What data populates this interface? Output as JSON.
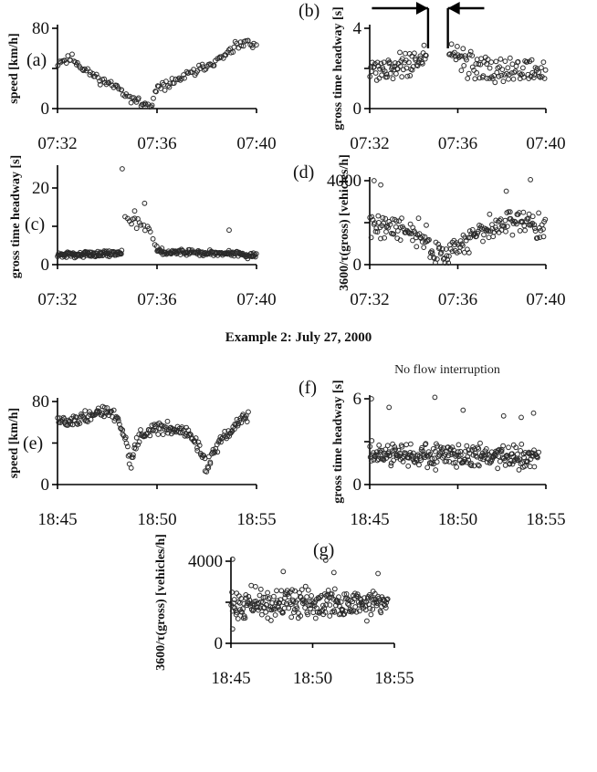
{
  "example2_caption": "Example 2: July 27, 2000",
  "annotation_f": "No flow interruption",
  "chart_data": [
    {
      "id": "a",
      "panel_label": "(a)",
      "type": "scatter",
      "ylabel": "speed [km/h]",
      "ylim": [
        0,
        80
      ],
      "yticks": [
        0,
        40,
        80
      ],
      "ytick_labels": [
        "0",
        "",
        "80"
      ],
      "xlim": [
        0,
        8
      ],
      "xticks": [
        0,
        4,
        8
      ],
      "xtick_labels": [
        "07:32",
        "07:36",
        "07:40"
      ],
      "series": [
        {
          "profile": [
            [
              0,
              46
            ],
            [
              0.6,
              50
            ],
            [
              1.0,
              40
            ],
            [
              1.8,
              28
            ],
            [
              2.5,
              20
            ],
            [
              3.0,
              10
            ],
            [
              3.4,
              4
            ],
            [
              3.8,
              3
            ],
            [
              4.0,
              20
            ],
            [
              4.6,
              26
            ],
            [
              5.6,
              38
            ],
            [
              6.6,
              50
            ],
            [
              7.2,
              62
            ],
            [
              7.6,
              66
            ],
            [
              8.0,
              60
            ]
          ],
          "n": 140,
          "noise": 4,
          "seed": 11
        }
      ]
    },
    {
      "id": "b",
      "panel_label": "(b)",
      "type": "scatter",
      "ylabel": "gross time headway [s]",
      "ylim": [
        0,
        4
      ],
      "yticks": [
        0,
        2,
        4
      ],
      "ytick_labels": [
        "0",
        "",
        "4"
      ],
      "xlim": [
        0,
        8
      ],
      "xticks": [
        0,
        4,
        8
      ],
      "xtick_labels": [
        "07:32",
        "07:36",
        "07:40"
      ],
      "series": [
        {
          "profile": [
            [
              0,
              2.0
            ],
            [
              1.5,
              2.2
            ],
            [
              2.6,
              2.5
            ]
          ],
          "n": 70,
          "noise": 0.6,
          "seed": 21
        },
        {
          "profile": [
            [
              3.6,
              2.6
            ],
            [
              5.5,
              2.0
            ],
            [
              8.0,
              1.8
            ]
          ],
          "n": 100,
          "noise": 0.7,
          "seed": 22
        }
      ],
      "markers": [
        {
          "x": 2.65,
          "arrow_from": 0.1
        },
        {
          "x": 3.55,
          "arrow_from": 5.2
        }
      ]
    },
    {
      "id": "c",
      "panel_label": "(c)",
      "type": "scatter",
      "ylabel": "gross time headway [s]",
      "ylim": [
        0,
        25
      ],
      "yticks": [
        0,
        10,
        20
      ],
      "ytick_labels": [
        "0",
        "",
        "20"
      ],
      "xlim": [
        0,
        8
      ],
      "xticks": [
        0,
        4,
        8
      ],
      "xtick_labels": [
        "07:32",
        "07:36",
        "07:40"
      ],
      "series": [
        {
          "profile": [
            [
              0,
              2.5
            ],
            [
              2.6,
              3
            ]
          ],
          "n": 110,
          "noise": 0.7,
          "seed": 31
        },
        {
          "profile": [
            [
              2.7,
              12
            ],
            [
              3.2,
              11
            ],
            [
              3.7,
              9
            ],
            [
              4.0,
              5
            ]
          ],
          "n": 18,
          "noise": 2.0,
          "seed": 32
        },
        {
          "profile": [
            [
              4.0,
              3.5
            ],
            [
              8.0,
              2.5
            ]
          ],
          "n": 140,
          "noise": 0.8,
          "seed": 33
        }
      ],
      "points": [
        [
          2.6,
          25
        ],
        [
          3.5,
          16
        ],
        [
          3.1,
          14
        ],
        [
          6.9,
          9
        ]
      ]
    },
    {
      "id": "d",
      "panel_label": "(d)",
      "type": "scatter",
      "ylabel": "3600/τ(gross) [vehicles/h]",
      "ylim": [
        0,
        4000
      ],
      "yticks": [
        0,
        2000,
        4000
      ],
      "ytick_labels": [
        "0",
        "",
        "4000"
      ],
      "xlim": [
        0,
        8
      ],
      "xticks": [
        0,
        4,
        8
      ],
      "xtick_labels": [
        "07:32",
        "07:36",
        "07:40"
      ],
      "series": [
        {
          "profile": [
            [
              0,
              1900
            ],
            [
              1.2,
              1800
            ],
            [
              2.4,
              1400
            ],
            [
              2.8,
              600
            ],
            [
              3.5,
              450
            ],
            [
              4.2,
              1100
            ],
            [
              5.5,
              1700
            ],
            [
              6.5,
              2100
            ],
            [
              8,
              1800
            ]
          ],
          "n": 200,
          "noise": 600,
          "seed": 41
        }
      ],
      "points": [
        [
          0.2,
          4000
        ],
        [
          0.5,
          3800
        ],
        [
          7.3,
          4050
        ],
        [
          6.2,
          3500
        ]
      ]
    },
    {
      "id": "e",
      "panel_label": "(e)",
      "type": "scatter",
      "ylabel": "speed [km/h]",
      "ylim": [
        0,
        80
      ],
      "yticks": [
        0,
        40,
        80
      ],
      "ytick_labels": [
        "0",
        "",
        "80"
      ],
      "xlim": [
        0,
        10
      ],
      "xticks": [
        0,
        5,
        10
      ],
      "xtick_labels": [
        "18:45",
        "18:50",
        "18:55"
      ],
      "series": [
        {
          "profile": [
            [
              0,
              60
            ],
            [
              1.5,
              65
            ],
            [
              2.5,
              72
            ],
            [
              3.0,
              65
            ],
            [
              3.4,
              45
            ],
            [
              3.7,
              20
            ],
            [
              4.0,
              45
            ],
            [
              5.0,
              55
            ],
            [
              6.5,
              52
            ],
            [
              7.0,
              38
            ],
            [
              7.2,
              30
            ],
            [
              7.5,
              15
            ],
            [
              8.0,
              35
            ],
            [
              8.6,
              50
            ],
            [
              9.0,
              58
            ],
            [
              9.6,
              65
            ]
          ],
          "n": 220,
          "noise": 6,
          "seed": 51
        }
      ]
    },
    {
      "id": "f",
      "panel_label": "(f)",
      "type": "scatter",
      "ylabel": "gross time headway [s]",
      "ylim": [
        0,
        6
      ],
      "yticks": [
        0,
        3,
        6
      ],
      "ytick_labels": [
        "0",
        "",
        "6"
      ],
      "xlim": [
        0,
        10
      ],
      "xticks": [
        0,
        5,
        10
      ],
      "xtick_labels": [
        "18:45",
        "18:50",
        "18:55"
      ],
      "series": [
        {
          "profile": [
            [
              0,
              2.0
            ],
            [
              5,
              2.0
            ],
            [
              9.6,
              2.0
            ]
          ],
          "n": 260,
          "noise": 0.8,
          "seed": 61
        }
      ],
      "points": [
        [
          0.1,
          6
        ],
        [
          3.7,
          6.1
        ],
        [
          1.1,
          5.4
        ],
        [
          5.3,
          5.2
        ],
        [
          7.6,
          4.8
        ],
        [
          8.6,
          4.7
        ],
        [
          9.3,
          5.0
        ]
      ]
    },
    {
      "id": "g",
      "panel_label": "(g)",
      "type": "scatter",
      "ylabel": "3600/τ(gross) [vehicles/h]",
      "ylim": [
        0,
        4000
      ],
      "yticks": [
        0,
        2000,
        4000
      ],
      "ytick_labels": [
        "0",
        "",
        "4000"
      ],
      "xlim": [
        0,
        10
      ],
      "xticks": [
        0,
        5,
        10
      ],
      "xtick_labels": [
        "18:45",
        "18:50",
        "18:55"
      ],
      "series": [
        {
          "profile": [
            [
              0,
              1900
            ],
            [
              5,
              1950
            ],
            [
              9.6,
              1900
            ]
          ],
          "n": 260,
          "noise": 700,
          "seed": 71
        }
      ],
      "points": [
        [
          0.1,
          4100
        ],
        [
          5.8,
          4050
        ],
        [
          3.2,
          3500
        ],
        [
          6.3,
          3450
        ],
        [
          9.0,
          3400
        ],
        [
          0.1,
          700
        ]
      ]
    }
  ]
}
